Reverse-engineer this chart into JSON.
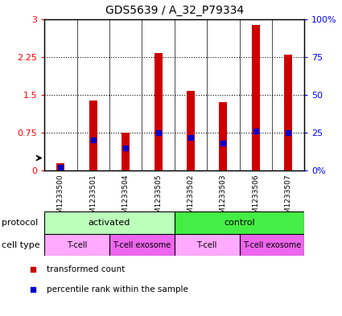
{
  "title": "GDS5639 / A_32_P79334",
  "samples": [
    "GSM1233500",
    "GSM1233501",
    "GSM1233504",
    "GSM1233505",
    "GSM1233502",
    "GSM1233503",
    "GSM1233506",
    "GSM1233507"
  ],
  "transformed_counts": [
    0.15,
    1.38,
    0.75,
    2.32,
    1.58,
    1.35,
    2.88,
    2.3
  ],
  "percentile_ranks_pct": [
    2,
    20,
    15,
    25,
    22,
    18,
    26,
    25
  ],
  "ylim_left": [
    0,
    3
  ],
  "ylim_right": [
    0,
    100
  ],
  "yticks_left": [
    0,
    0.75,
    1.5,
    2.25,
    3
  ],
  "yticks_right": [
    0,
    25,
    50,
    75,
    100
  ],
  "ytick_labels_left": [
    "0",
    "0.75",
    "1.5",
    "2.25",
    "3"
  ],
  "ytick_labels_right": [
    "0%",
    "25",
    "50",
    "75",
    "100%"
  ],
  "bar_color": "#cc0000",
  "dot_color": "#0000cc",
  "bar_width": 0.25,
  "protocol_groups": [
    {
      "label": "activated",
      "start": 0,
      "end": 4,
      "color": "#bbffbb"
    },
    {
      "label": "control",
      "start": 4,
      "end": 8,
      "color": "#44ee44"
    }
  ],
  "cell_type_groups": [
    {
      "label": "T-cell",
      "start": 0,
      "end": 2,
      "color": "#ffaaff"
    },
    {
      "label": "T-cell exosome",
      "start": 2,
      "end": 4,
      "color": "#ee66ee"
    },
    {
      "label": "T-cell",
      "start": 4,
      "end": 6,
      "color": "#ffaaff"
    },
    {
      "label": "T-cell exosome",
      "start": 6,
      "end": 8,
      "color": "#ee66ee"
    }
  ],
  "legend_items": [
    {
      "label": "transformed count",
      "color": "#cc0000"
    },
    {
      "label": "percentile rank within the sample",
      "color": "#0000cc"
    }
  ],
  "protocol_label": "protocol",
  "cell_type_label": "cell type",
  "dotted_line_color": "#333333",
  "xtick_bg_color": "#c8c8c8",
  "plot_bg_color": "#ffffff",
  "border_color": "#000000"
}
